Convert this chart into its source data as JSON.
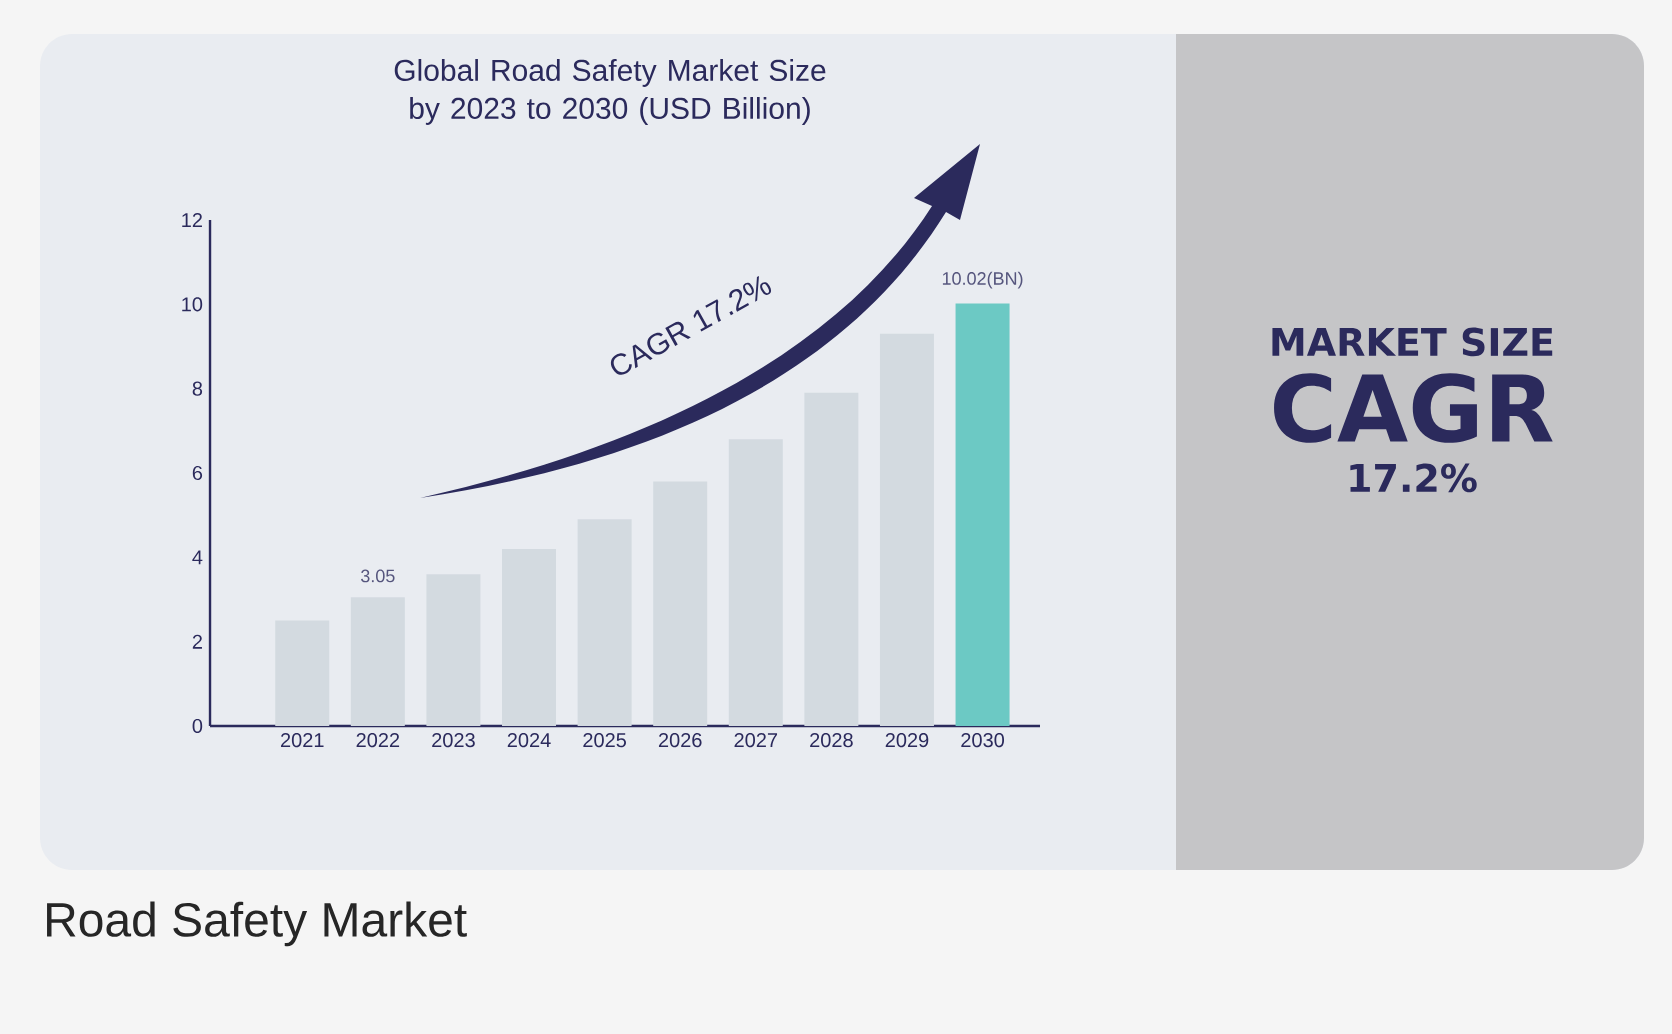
{
  "chart_data": {
    "type": "bar",
    "title": "Global Road Safety Market Size by 2023 to 2030 (USD Billion)",
    "categories": [
      "2021",
      "2022",
      "2023",
      "2024",
      "2025",
      "2026",
      "2027",
      "2028",
      "2029",
      "2030"
    ],
    "values": [
      2.5,
      3.05,
      3.6,
      4.2,
      4.9,
      5.8,
      6.8,
      7.9,
      9.3,
      10.02
    ],
    "colors": [
      "#d3dae0",
      "#d3dae0",
      "#d3dae0",
      "#d3dae0",
      "#d3dae0",
      "#d3dae0",
      "#d3dae0",
      "#d3dae0",
      "#d3dae0",
      "#6cc9c4"
    ],
    "value_labels": [
      null,
      "3.05",
      null,
      null,
      null,
      null,
      null,
      null,
      null,
      "10.02(BN)"
    ],
    "ylim": [
      0,
      12
    ],
    "yticks": [
      0,
      2,
      4,
      6,
      8,
      10,
      12
    ],
    "annotations": [
      "CAGR 17.2%",
      "MARKET SIZE",
      "CAGR",
      "17.2%",
      "Road Safety Market"
    ]
  }
}
